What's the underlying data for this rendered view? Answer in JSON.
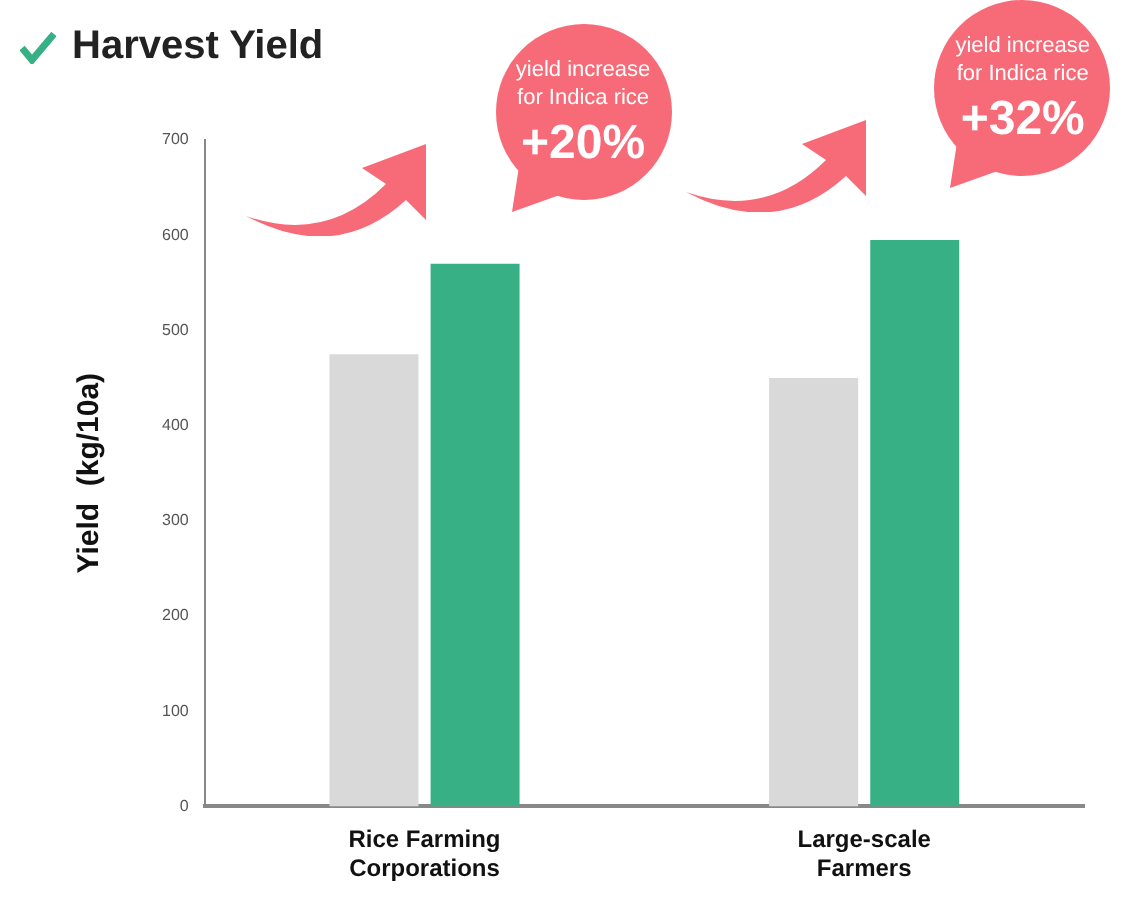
{
  "chart_data": {
    "type": "bar",
    "title": "Harvest Yield",
    "ylabel": "Yield  (kg/10a)",
    "categories": [
      "Rice Farming Corporations",
      "Large-scale Farmers"
    ],
    "series": [
      {
        "color": "#d9d9d9",
        "values": [
          475,
          450
        ]
      },
      {
        "color": "#38b086",
        "values": [
          570,
          595
        ]
      }
    ],
    "ylim": [
      0,
      700
    ],
    "yticks": [
      0,
      100,
      200,
      300,
      400,
      500,
      600,
      700
    ],
    "grid": false,
    "legend": false,
    "annotations": [
      "yield increase for Indica rice",
      "+20%",
      "yield increase for Indica rice",
      "+32%"
    ]
  }
}
